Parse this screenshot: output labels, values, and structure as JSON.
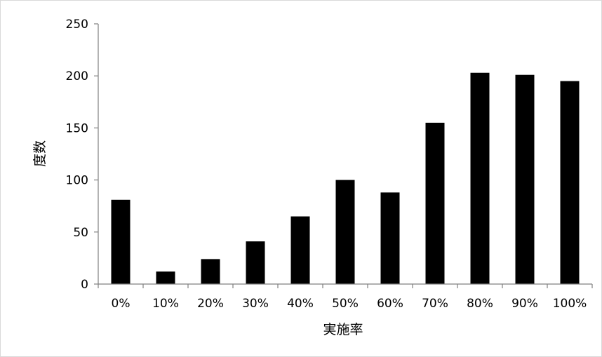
{
  "chart_data": {
    "type": "bar",
    "title": "",
    "xlabel": "実施率",
    "ylabel": "度数",
    "categories": [
      "0%",
      "10%",
      "20%",
      "30%",
      "40%",
      "50%",
      "60%",
      "70%",
      "80%",
      "90%",
      "100%"
    ],
    "values": [
      81,
      12,
      24,
      41,
      65,
      100,
      88,
      155,
      203,
      201,
      195
    ],
    "ylim": [
      0,
      250
    ],
    "yticks": [
      0,
      50,
      100,
      150,
      200,
      250
    ],
    "grid": false,
    "legend": "none",
    "bar_color": "#000000"
  }
}
